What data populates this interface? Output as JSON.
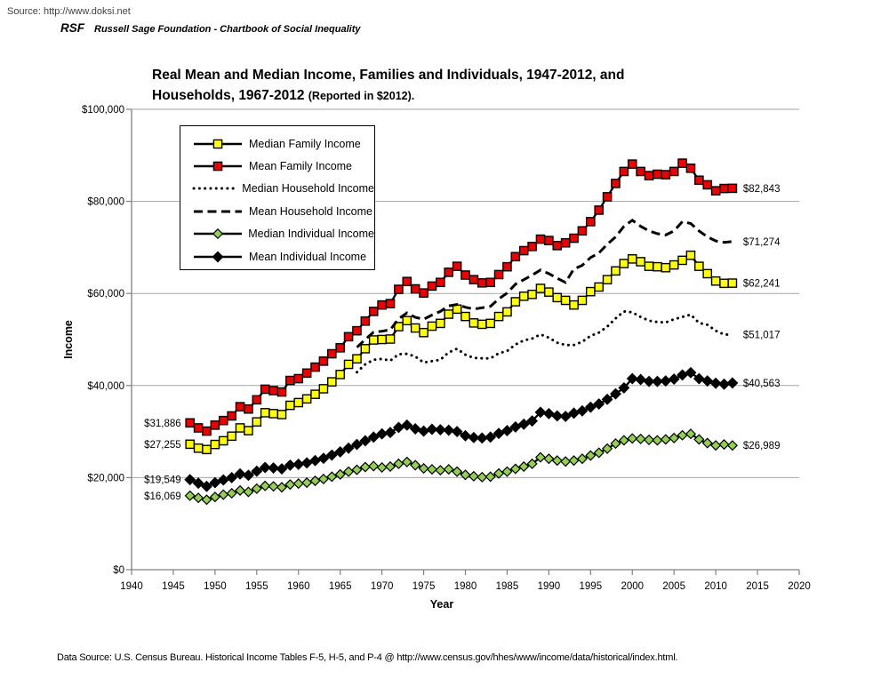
{
  "page": {
    "source_line": "Source: http://www.doksi.net",
    "brand_abbr": "RSF",
    "brand_name": "Russell Sage Foundation - Chartbook of Social Inequality",
    "footer": "Data Source: U.S. Census Bureau. Historical Income Tables F-5, H-5, and P-4 @ http://www.census.gov/hhes/www/income/data/historical/index.html."
  },
  "chart_data": {
    "type": "line",
    "title_line1": "Real Mean and Median Income, Families and Individuals, 1947-2012, and",
    "title_line2": "Households, 1967-2012",
    "title_suffix": "(Reported in $2012).",
    "xlabel": "Year",
    "ylabel": "Income",
    "xlim": [
      1940,
      2020
    ],
    "ylim": [
      0,
      100000
    ],
    "grid": "horizontal-only",
    "legend_position": "upper-left-inside",
    "x_ticks": [
      1940,
      1945,
      1950,
      1955,
      1960,
      1965,
      1970,
      1975,
      1980,
      1985,
      1990,
      1995,
      2000,
      2005,
      2010,
      2015,
      2020
    ],
    "y_ticks": [
      {
        "value": 0,
        "label": "$0"
      },
      {
        "value": 20000,
        "label": "$20,000"
      },
      {
        "value": 40000,
        "label": "$40,000"
      },
      {
        "value": 60000,
        "label": "$60,000"
      },
      {
        "value": 80000,
        "label": "$80,000"
      },
      {
        "value": 100000,
        "label": "$100,000"
      }
    ],
    "colors": {
      "yellow_marker": "#ffff00",
      "red_marker": "#ee0000",
      "green_marker": "#92d050",
      "black": "#000000",
      "gridline": "#a6a6a6",
      "axis": "#808080"
    },
    "series": [
      {
        "id": "median_family",
        "label": "Median Family Income",
        "line": "solid",
        "marker": "square",
        "marker_color": "#ffff00",
        "start_year": 1947,
        "values": [
          27255,
          26400,
          26100,
          27200,
          28000,
          29000,
          30800,
          30200,
          32100,
          34100,
          33900,
          33700,
          35700,
          36300,
          37100,
          38100,
          39300,
          40800,
          42400,
          44600,
          45800,
          48000,
          49900,
          50000,
          50100,
          52800,
          54100,
          52500,
          51500,
          52900,
          53500,
          55500,
          56600,
          55000,
          53600,
          53300,
          53500,
          55000,
          56000,
          58200,
          59400,
          59800,
          61100,
          60300,
          59100,
          58500,
          57500,
          58500,
          60400,
          61400,
          63000,
          64900,
          66500,
          67500,
          66900,
          65900,
          65800,
          65600,
          66200,
          67200,
          68300,
          65900,
          64300,
          62700,
          62200,
          62241
        ]
      },
      {
        "id": "mean_family",
        "label": "Mean Family Income",
        "line": "solid",
        "marker": "square",
        "marker_color": "#ee0000",
        "start_year": 1947,
        "values": [
          31886,
          30800,
          30100,
          31400,
          32400,
          33400,
          35400,
          34900,
          36900,
          39200,
          38900,
          38600,
          41100,
          41500,
          42700,
          44000,
          45300,
          46900,
          48200,
          50600,
          51900,
          54000,
          56100,
          57500,
          57800,
          60900,
          62600,
          61000,
          60100,
          61600,
          62400,
          64600,
          65900,
          64000,
          63000,
          62300,
          62400,
          64100,
          65800,
          68000,
          69300,
          70200,
          71800,
          71500,
          70400,
          71000,
          72000,
          73600,
          75600,
          78100,
          81000,
          83900,
          86500,
          88100,
          86500,
          85600,
          85900,
          85800,
          86500,
          88300,
          87200,
          84600,
          83600,
          82300,
          82800,
          82843
        ]
      },
      {
        "id": "median_household",
        "label": "Median Household Income",
        "line": "dotted",
        "marker": "none",
        "marker_color": "#000000",
        "start_year": 1967,
        "values": [
          42900,
          44600,
          45600,
          45800,
          45400,
          46800,
          46900,
          46300,
          45000,
          45300,
          45600,
          47200,
          48000,
          46700,
          46000,
          45900,
          45900,
          47000,
          47500,
          48900,
          49800,
          50200,
          51100,
          50400,
          49300,
          48800,
          48800,
          49500,
          50800,
          51500,
          52800,
          54600,
          56100,
          55900,
          54900,
          54100,
          53800,
          53700,
          54400,
          54900,
          55400,
          53600,
          53200,
          51900,
          51100,
          51017
        ]
      },
      {
        "id": "mean_household",
        "label": "Mean Household Income",
        "line": "dashed",
        "marker": "none",
        "marker_color": "#000000",
        "start_year": 1967,
        "values": [
          48300,
          50000,
          51600,
          51800,
          52100,
          54500,
          55800,
          54800,
          54400,
          55300,
          56100,
          57300,
          57600,
          57000,
          56600,
          56900,
          57200,
          58800,
          60100,
          62000,
          63000,
          64000,
          65100,
          64300,
          63300,
          62400,
          65300,
          66100,
          67800,
          68800,
          70700,
          72300,
          74600,
          75900,
          74600,
          73600,
          73000,
          72700,
          73600,
          75600,
          75200,
          73600,
          72300,
          71400,
          71100,
          71274
        ]
      },
      {
        "id": "median_individual",
        "label": "Median Individual Income",
        "line": "solid",
        "marker": "diamond",
        "marker_color": "#92d050",
        "start_year": 1947,
        "values": [
          16069,
          15600,
          15200,
          15800,
          16300,
          16600,
          17200,
          16900,
          17600,
          18200,
          18100,
          17900,
          18500,
          18700,
          18900,
          19300,
          19700,
          20200,
          20700,
          21300,
          21700,
          22300,
          22500,
          22200,
          22400,
          23000,
          23400,
          22700,
          22000,
          21800,
          21600,
          21800,
          21300,
          20600,
          20300,
          20100,
          20200,
          20900,
          21300,
          21900,
          22400,
          23000,
          24400,
          24100,
          23700,
          23500,
          23700,
          24100,
          24800,
          25400,
          26300,
          27400,
          28100,
          28500,
          28400,
          28200,
          28100,
          28300,
          28600,
          29200,
          29500,
          28300,
          27500,
          27000,
          27200,
          26989
        ]
      },
      {
        "id": "mean_individual",
        "label": "Mean Individual Income",
        "line": "solid",
        "marker": "diamond",
        "marker_color": "#000000",
        "start_year": 1947,
        "values": [
          19549,
          18800,
          18100,
          18900,
          19500,
          20000,
          20800,
          20500,
          21400,
          22200,
          22100,
          21900,
          22700,
          22900,
          23200,
          23700,
          24200,
          24900,
          25600,
          26400,
          27200,
          28000,
          28800,
          29500,
          29800,
          30900,
          31400,
          30600,
          30100,
          30500,
          30400,
          30300,
          30000,
          29100,
          28700,
          28600,
          28800,
          29600,
          30200,
          31000,
          31600,
          32300,
          34200,
          33900,
          33400,
          33300,
          34000,
          34500,
          35300,
          36000,
          37000,
          38200,
          39500,
          41500,
          41300,
          40900,
          40900,
          41000,
          41400,
          42300,
          42800,
          41500,
          41000,
          40500,
          40300,
          40563
        ]
      }
    ],
    "annotations": [
      {
        "text": "$31,886",
        "year": 1947,
        "value": 31886,
        "side": "left"
      },
      {
        "text": "$27,255",
        "year": 1947,
        "value": 27255,
        "side": "left"
      },
      {
        "text": "$19,549",
        "year": 1947,
        "value": 19549,
        "side": "left"
      },
      {
        "text": "$16,069",
        "year": 1947,
        "value": 16069,
        "side": "left"
      },
      {
        "text": "$82,843",
        "year": 2012,
        "value": 82843,
        "side": "right"
      },
      {
        "text": "$71,274",
        "year": 2012,
        "value": 71274,
        "side": "right"
      },
      {
        "text": "$62,241",
        "year": 2012,
        "value": 62241,
        "side": "right"
      },
      {
        "text": "$51,017",
        "year": 2012,
        "value": 51017,
        "side": "right"
      },
      {
        "text": "$40,563",
        "year": 2012,
        "value": 40563,
        "side": "right"
      },
      {
        "text": "$26,989",
        "year": 2012,
        "value": 26989,
        "side": "right"
      }
    ]
  }
}
